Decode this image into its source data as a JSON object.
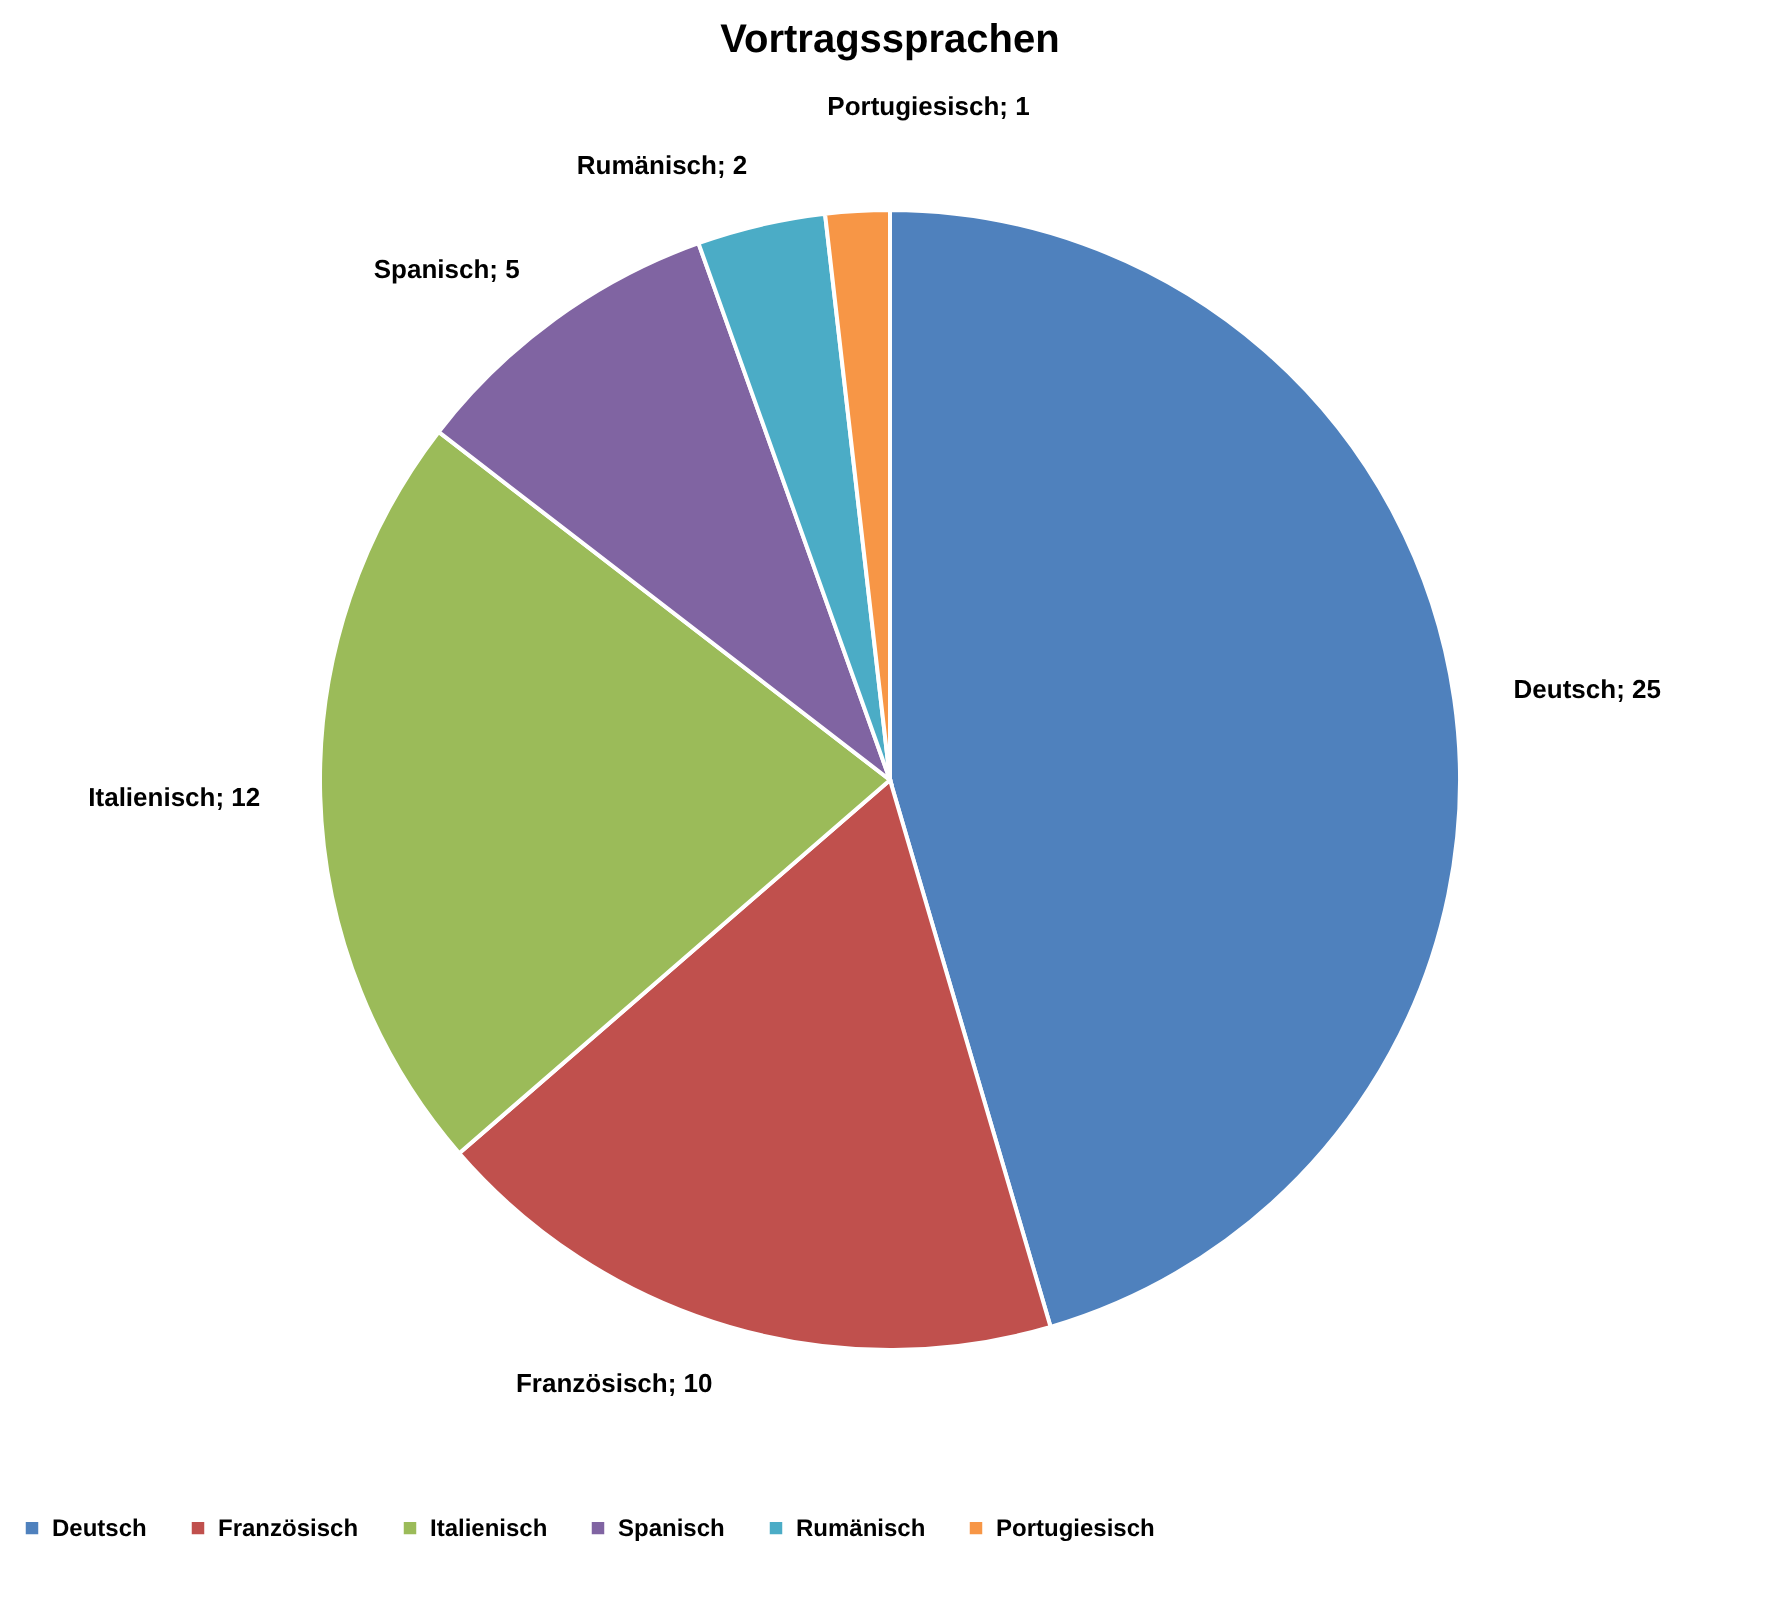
{
  "chart_data": {
    "type": "pie",
    "title": "Vortragssprachen",
    "categories": [
      "Deutsch",
      "Französisch",
      "Italienisch",
      "Spanisch",
      "Rumänisch",
      "Portugiesisch"
    ],
    "values": [
      25,
      10,
      12,
      5,
      2,
      1
    ],
    "colors": [
      "#4f81bd",
      "#c0504d",
      "#9bbb59",
      "#8064a2",
      "#4bacc6",
      "#f79646"
    ],
    "value_labels": [
      "Deutsch; 25",
      "Französisch; 10",
      "Italienisch; 12",
      "Spanisch; 5",
      "Rumänisch; 2",
      "Portugiesisch; 1"
    ],
    "legend": "bottom"
  }
}
